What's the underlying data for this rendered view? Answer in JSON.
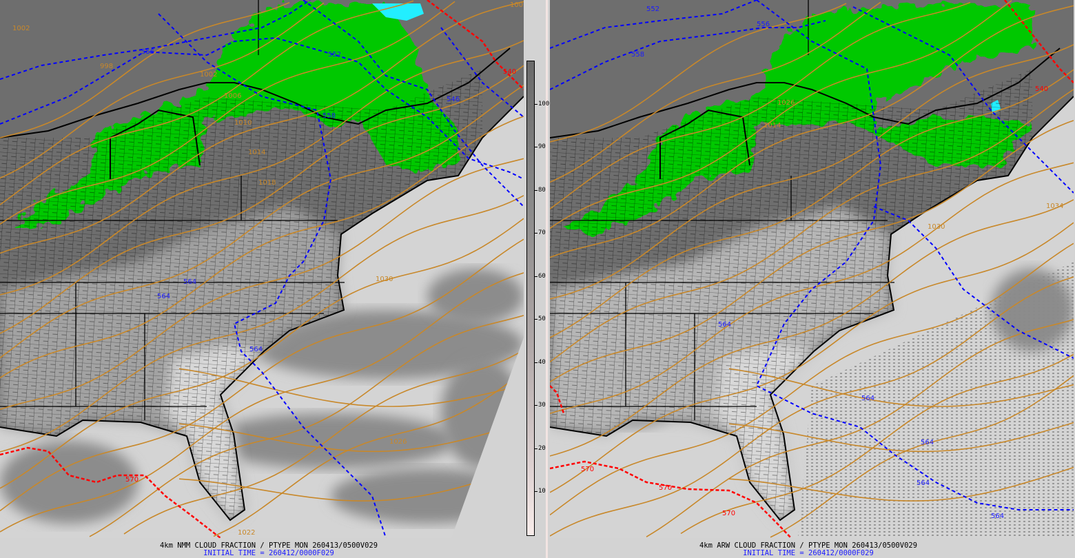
{
  "panels": [
    {
      "id": "left",
      "title": "4km NMM CLOUD FRACTION / PTYPE MON 260413/0500V029",
      "init_time": "INITIAL TIME = 260412/0000F029",
      "contour_labels": [
        "1002",
        "998",
        "556",
        "1002",
        "1006",
        "1010",
        "552",
        "546",
        "540",
        "1002",
        "558",
        "1014",
        "1018",
        "1030",
        "564",
        "564",
        "564",
        "570",
        "1026",
        "1022"
      ]
    },
    {
      "id": "right",
      "title": "4km ARW CLOUD FRACTION / PTYPE MON 260413/0500V029",
      "init_time": "INITIAL TIME = 260412/0000F029",
      "contour_labels": [
        "552",
        "556",
        "558",
        "1026",
        "1014",
        "1034",
        "1030",
        "564",
        "564",
        "564",
        "564",
        "570",
        "570",
        "570",
        "540",
        "564"
      ]
    }
  ],
  "colorbar": {
    "label_ticks": [
      "10",
      "20",
      "30",
      "40",
      "50",
      "60",
      "70",
      "80",
      "90",
      "100"
    ],
    "range": [
      0,
      110
    ]
  },
  "colors": {
    "land_cloud": "#6e6e6e",
    "clear": "#d3d3d3",
    "rain": "#00c800",
    "snow": "#22eeff",
    "pressure_contour": "#c8882a",
    "thickness_cold": "#0000ff",
    "thickness_warm": "#ff0000",
    "title": "#000000",
    "init_time": "#1a1aff"
  }
}
